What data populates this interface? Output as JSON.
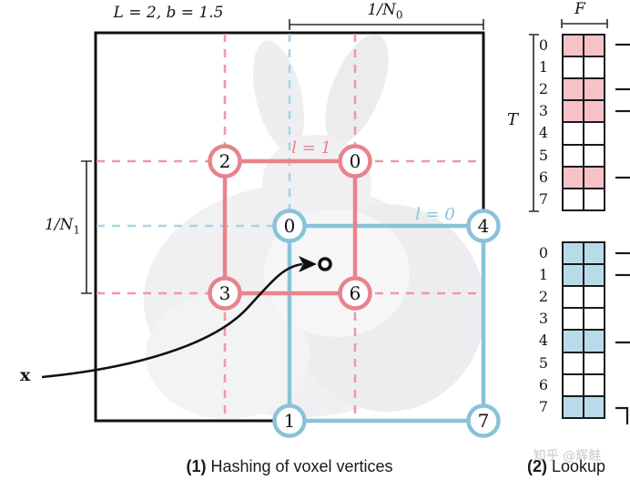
{
  "colors": {
    "red": "#e8838c",
    "red_dashed": "#ee9aa1",
    "red_fill": "#f6c2c7",
    "blue": "#8ac2d8",
    "blue_dashed": "#a9d4e3",
    "blue_fill": "#b9dbe9",
    "ink": "#111111",
    "watermark_gray": "#c9c9c9"
  },
  "panel1": {
    "params_label": "L = 2,  b = 1.5",
    "n0": {
      "base": "1/N",
      "sub": "0"
    },
    "n1": {
      "base": "1/N",
      "sub": "1"
    },
    "red_level": {
      "label": "l = 1",
      "vertices": [
        "2",
        "0",
        "3",
        "6"
      ]
    },
    "blue_level": {
      "label": "l = 0",
      "vertices": [
        "0",
        "4",
        "1",
        "7"
      ]
    },
    "x_label": "x",
    "point_marker": "o",
    "caption": {
      "num": "(1)",
      "text": " Hashing of voxel vertices"
    }
  },
  "panel2": {
    "f_label": "F",
    "t_label": "T",
    "top_table": {
      "row_labels": [
        "0",
        "1",
        "2",
        "3",
        "4",
        "5",
        "6",
        "7"
      ],
      "filled_rows": [
        0,
        2,
        3,
        6
      ],
      "fill_color": "#f6c2c7",
      "cols": 2
    },
    "bottom_table": {
      "row_labels": [
        "0",
        "1",
        "2",
        "3",
        "4",
        "5",
        "6",
        "7"
      ],
      "filled_rows": [
        0,
        1,
        4,
        7
      ],
      "fill_color": "#b9dbe9",
      "cols": 2
    },
    "caption": {
      "num": "(2)",
      "text": " Lookup"
    }
  },
  "watermark": "知乎 @辉鲑"
}
